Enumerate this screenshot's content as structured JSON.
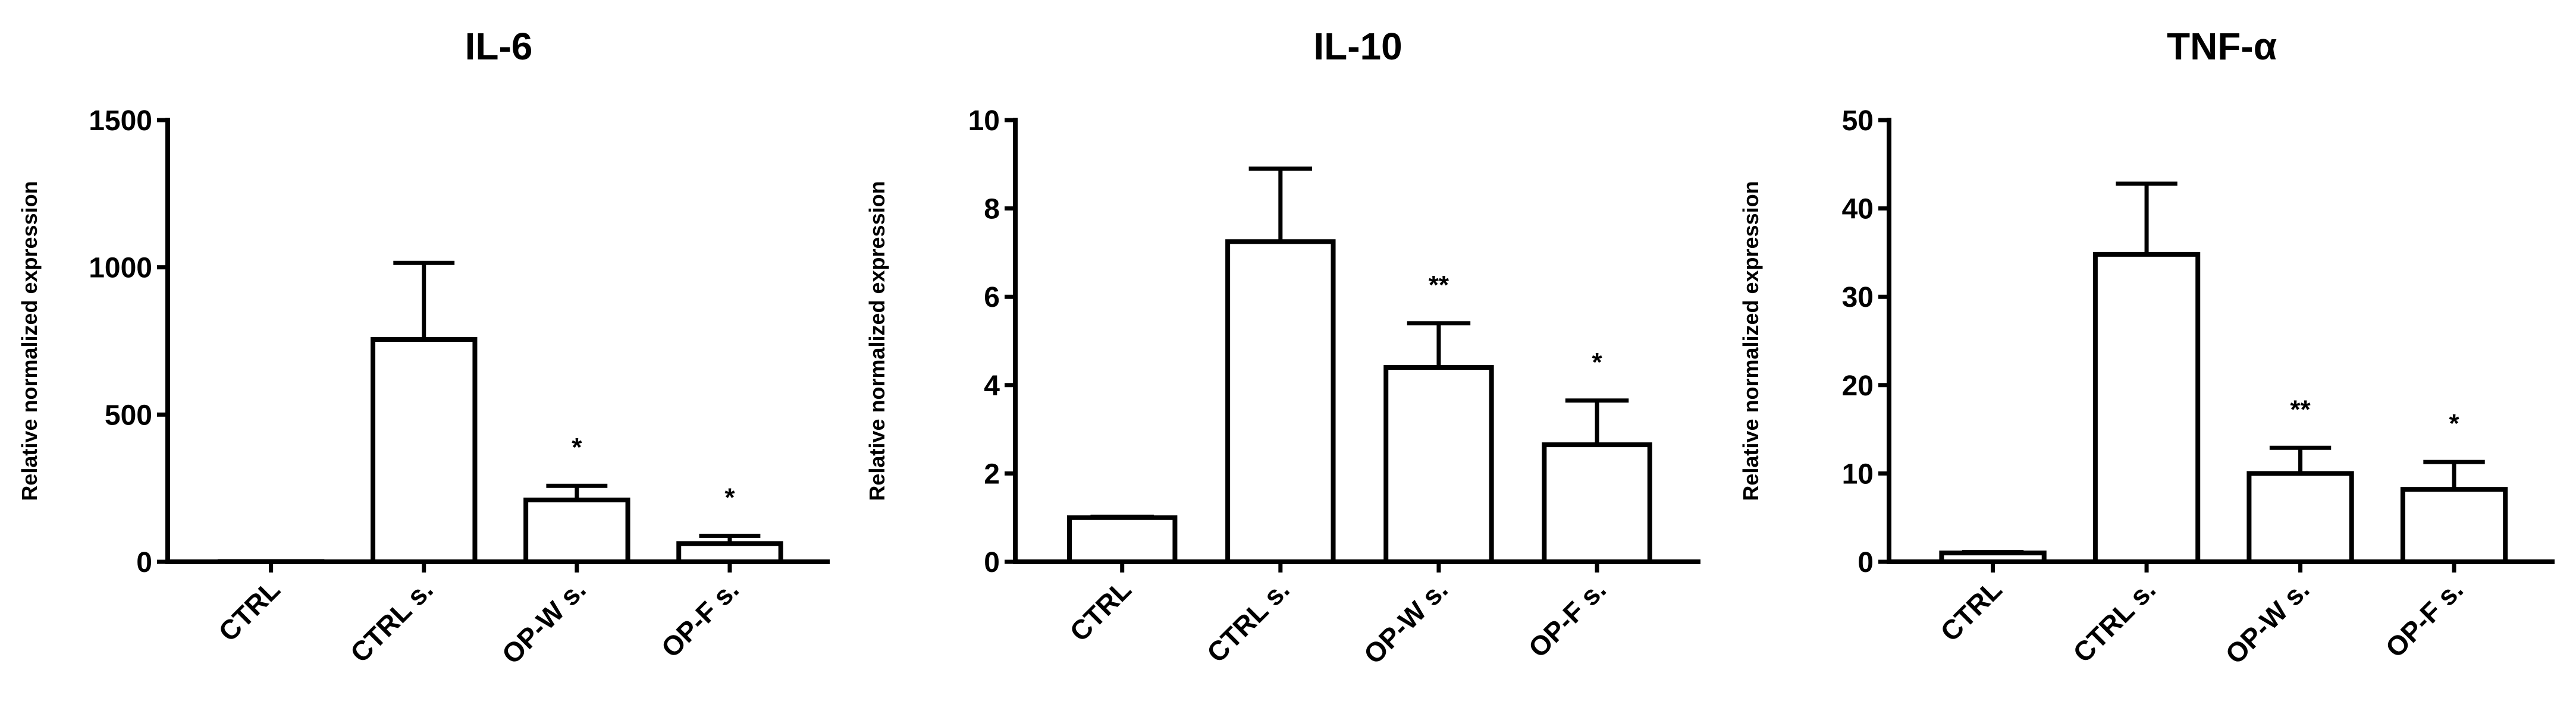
{
  "chart_data": [
    {
      "type": "bar",
      "title": "IL-6",
      "y_label": "Relative normalized expression",
      "categories": [
        "CTRL",
        "CTRL s.",
        "OP-W s.",
        "OP-F s."
      ],
      "values": [
        1,
        755,
        210,
        62
      ],
      "errors": [
        0,
        260,
        48,
        26
      ],
      "annotations": [
        null,
        null,
        "*",
        "*"
      ],
      "ylim": [
        0,
        1500
      ],
      "yticks": [
        0,
        500,
        1000,
        1500
      ],
      "color": "#ffffff"
    },
    {
      "type": "bar",
      "title": "IL-10",
      "y_label": "Relative normalized expression",
      "categories": [
        "CTRL",
        "CTRL s.",
        "OP-W s.",
        "OP-F s."
      ],
      "values": [
        1.0,
        7.25,
        4.4,
        2.65
      ],
      "errors": [
        0.02,
        1.65,
        1.0,
        1.0
      ],
      "annotations": [
        null,
        null,
        "**",
        "*"
      ],
      "ylim": [
        0,
        10
      ],
      "yticks": [
        0,
        2,
        4,
        6,
        8,
        10
      ],
      "color": "#ffffff"
    },
    {
      "type": "bar",
      "title": "TNF-α",
      "y_label": "Relative normalized expression",
      "categories": [
        "CTRL",
        "CTRL s.",
        "OP-W s.",
        "OP-F s."
      ],
      "values": [
        1.0,
        34.8,
        10,
        8.2
      ],
      "errors": [
        0.1,
        8,
        2.9,
        3.1
      ],
      "annotations": [
        null,
        null,
        "**",
        "*"
      ],
      "ylim": [
        0,
        50
      ],
      "yticks": [
        0,
        10,
        20,
        30,
        40,
        50
      ],
      "color": "#ffffff"
    }
  ]
}
